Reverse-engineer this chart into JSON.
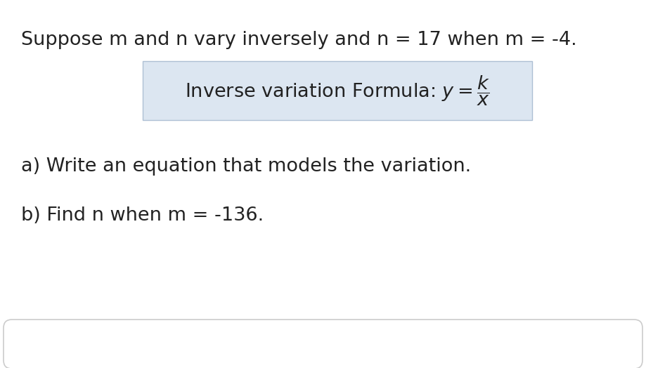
{
  "title_text": "Suppose m and n vary inversely and n = 17 when m = -4.",
  "formula_label": "Inverse variation Formula: $y = \\dfrac{k}{x}$",
  "part_a": "a) Write an equation that models the variation.",
  "part_b": "b) Find n when m = -136.",
  "bg_color": "#ffffff",
  "text_color": "#222222",
  "formula_box_facecolor": "#dce6f1",
  "formula_box_edgecolor": "#aec0d4",
  "title_fontsize": 19.5,
  "formula_fontsize": 19.5,
  "part_fontsize": 19.5,
  "bottom_box_edgecolor": "#cccccc"
}
